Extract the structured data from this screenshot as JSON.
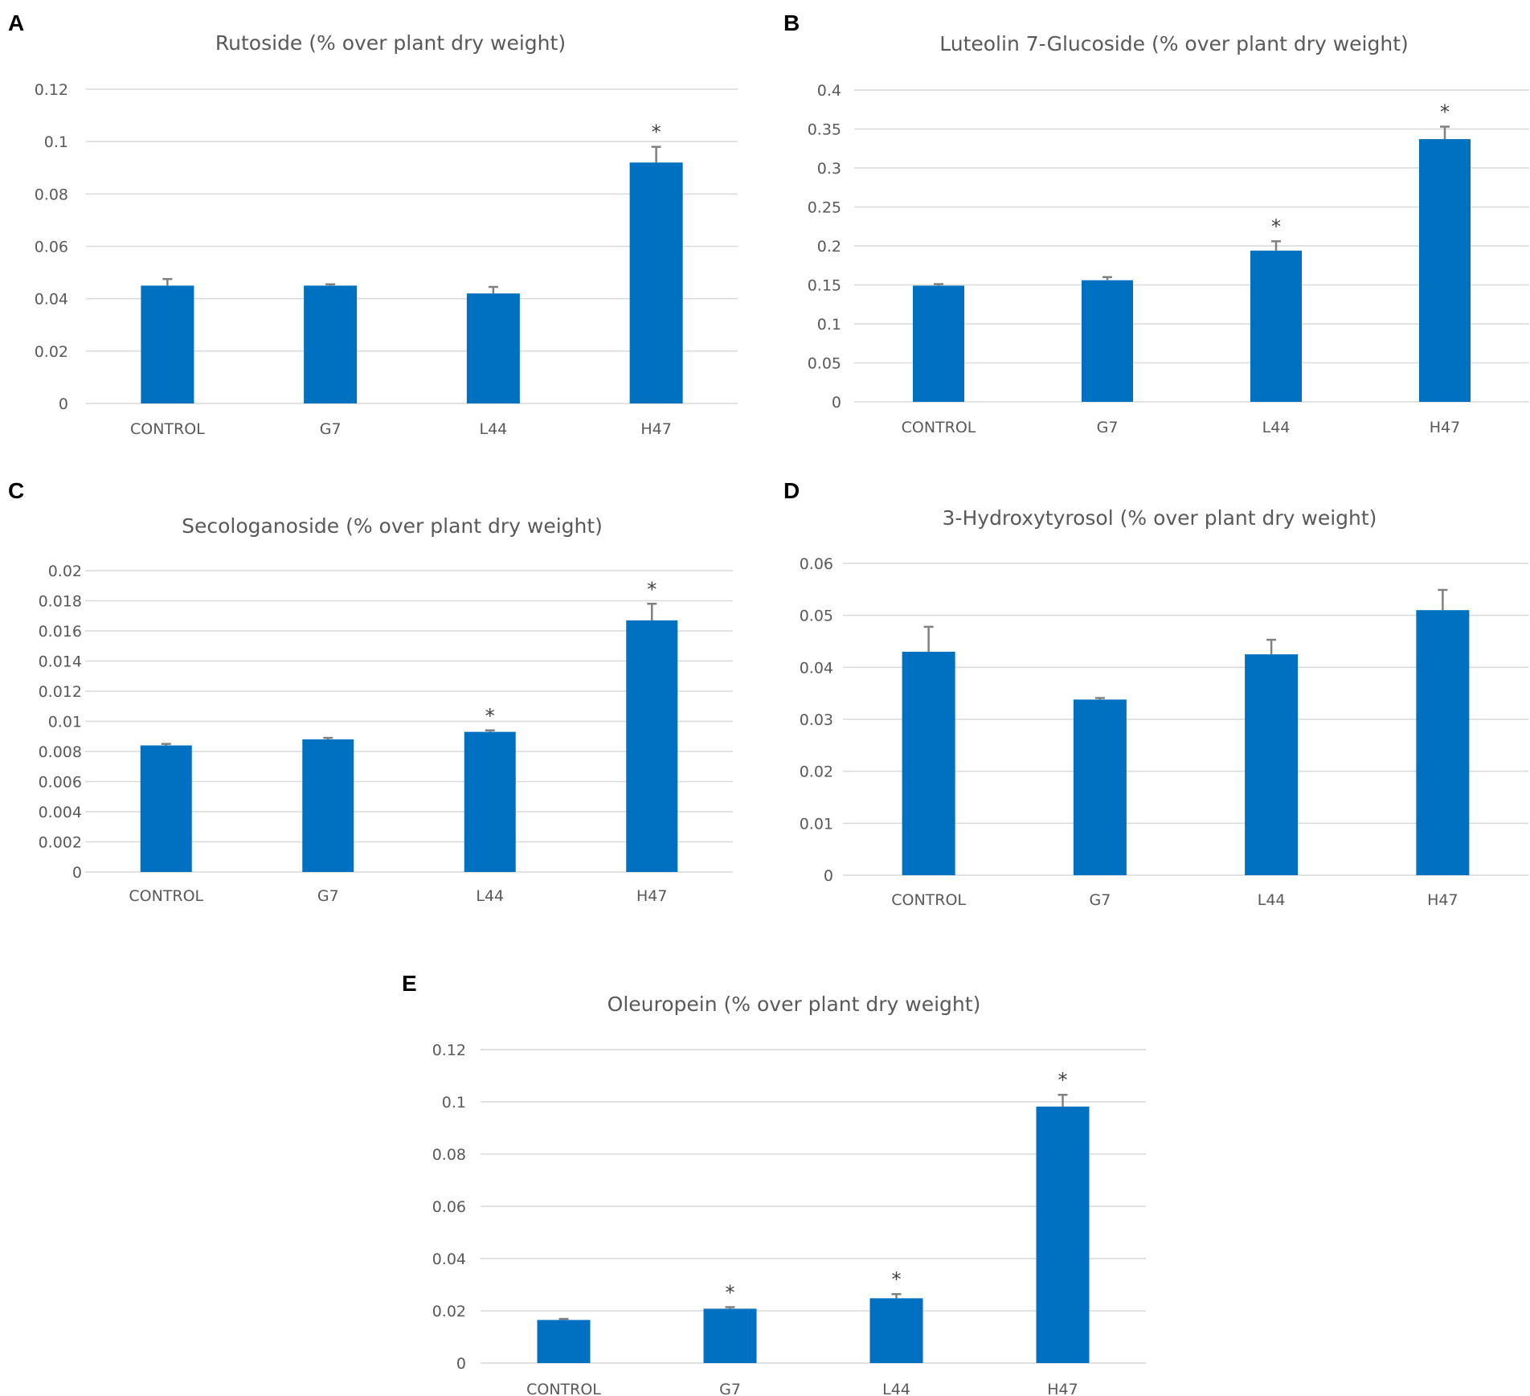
{
  "figure": {
    "bar_color": "#0070C0",
    "error_color": "#808080",
    "grid_color": "#D9D9D9"
  },
  "chart_data": [
    {
      "panel": "A",
      "type": "bar",
      "title": "Rutoside (% over plant dry weight)",
      "categories": [
        "CONTROL",
        "G7",
        "L44",
        "H47"
      ],
      "values": [
        0.045,
        0.045,
        0.042,
        0.092
      ],
      "errors": [
        0.0025,
        0.0005,
        0.0025,
        0.006
      ],
      "significant": [
        false,
        false,
        false,
        true
      ],
      "yticks": [
        "0",
        "0.02",
        "0.04",
        "0.06",
        "0.08",
        "0.1",
        "0.12"
      ],
      "ylim": [
        0,
        0.12
      ],
      "xlabel": "",
      "ylabel": ""
    },
    {
      "panel": "B",
      "type": "bar",
      "title": "Luteolin 7-Glucoside (% over plant dry weight)",
      "categories": [
        "CONTROL",
        "G7",
        "L44",
        "H47"
      ],
      "values": [
        0.149,
        0.156,
        0.194,
        0.337
      ],
      "errors": [
        0.002,
        0.004,
        0.012,
        0.016
      ],
      "significant": [
        false,
        false,
        true,
        true
      ],
      "yticks": [
        "0",
        "0.05",
        "0.1",
        "0.15",
        "0.2",
        "0.25",
        "0.3",
        "0.35",
        "0.4"
      ],
      "ylim": [
        0,
        0.4
      ],
      "xlabel": "",
      "ylabel": ""
    },
    {
      "panel": "C",
      "type": "bar",
      "title": "Secologanoside (% over plant dry weight)",
      "categories": [
        "CONTROL",
        "G7",
        "L44",
        "H47"
      ],
      "values": [
        0.0084,
        0.0088,
        0.0093,
        0.0167
      ],
      "errors": [
        0.0001,
        0.0001,
        0.0001,
        0.0011
      ],
      "significant": [
        false,
        false,
        true,
        true
      ],
      "yticks": [
        "0",
        "0.002",
        "0.004",
        "0.006",
        "0.008",
        "0.01",
        "0.012",
        "0.014",
        "0.016",
        "0.018",
        "0.02"
      ],
      "ylim": [
        0,
        0.02
      ],
      "xlabel": "",
      "ylabel": ""
    },
    {
      "panel": "D",
      "type": "bar",
      "title": "3-Hydroxytyrosol (% over plant dry weight)",
      "categories": [
        "CONTROL",
        "G7",
        "L44",
        "H47"
      ],
      "values": [
        0.043,
        0.0338,
        0.0425,
        0.051
      ],
      "errors": [
        0.0048,
        0.0003,
        0.0028,
        0.0039
      ],
      "significant": [
        false,
        false,
        false,
        false
      ],
      "yticks": [
        "0",
        "0.01",
        "0.02",
        "0.03",
        "0.04",
        "0.05",
        "0.06"
      ],
      "ylim": [
        0,
        0.06
      ],
      "xlabel": "",
      "ylabel": ""
    },
    {
      "panel": "E",
      "type": "bar",
      "title": "Oleuropein (% over plant dry weight)",
      "categories": [
        "CONTROL",
        "G7",
        "L44",
        "H47"
      ],
      "values": [
        0.0165,
        0.0208,
        0.0248,
        0.0982
      ],
      "errors": [
        0.0004,
        0.0006,
        0.0016,
        0.0045
      ],
      "significant": [
        false,
        true,
        true,
        true
      ],
      "yticks": [
        "0",
        "0.02",
        "0.04",
        "0.06",
        "0.08",
        "0.1",
        "0.12"
      ],
      "ylim": [
        0,
        0.12
      ],
      "xlabel": "",
      "ylabel": ""
    }
  ]
}
